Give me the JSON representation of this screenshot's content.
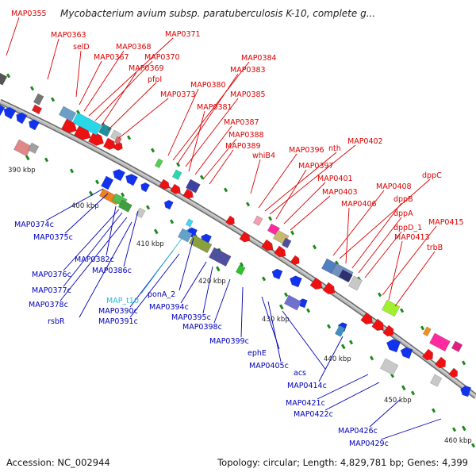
{
  "title": "Mycobacterium avium subsp. paratuberculosis K-10, complete g...",
  "footer": {
    "accession": "Accession: NC_002944",
    "topology": "Topology: circular; Length: 4,829,781 bp; Genes: 4,399"
  },
  "kbp_labels": [
    "390 kbp",
    "400 kbp",
    "410 kbp",
    "420 kbp",
    "430 kbp",
    "440 kbp",
    "450 kbp",
    "460 kbp"
  ],
  "colors": {
    "forward_label": "#dd0000",
    "reverse_label": "#0000bb",
    "rna_label": "#22bbdd",
    "forward_gene": "#ee1111",
    "reverse_gene": "#1133ee",
    "backbone": "#8c8c8c",
    "tick": "#1a8a1a"
  },
  "forward_labels": [
    "MAP0355",
    "MAP0363",
    "selD",
    "MAP0367",
    "MAP0368",
    "MAP0371",
    "MAP0370",
    "MAP0369",
    "pfpI",
    "MAP0373",
    "MAP0380",
    "MAP0384",
    "MAP0383",
    "MAP0385",
    "MAP0381",
    "MAP0387",
    "MAP0388",
    "MAP0389",
    "whiB4",
    "MAP0396",
    "nth",
    "MAP0402",
    "MAP0397",
    "MAP0401",
    "MAP0403",
    "MAP0408",
    "dppC",
    "MAP0406",
    "dppB",
    "dppA",
    "dppD_1",
    "MAP0415",
    "MAP0413",
    "trbB"
  ],
  "reverse_labels": [
    "MAP0374c",
    "MAP0375c",
    "MAP0382c",
    "MAP0386c",
    "MAP0376c",
    "MAP0377c",
    "MAP0378c",
    "rsbR",
    "ponA_2",
    "MAP0390c",
    "MAP0391c",
    "MAP0394c",
    "MAP0395c",
    "MAP0398c",
    "MAP0399c",
    "ephE",
    "MAP0405c",
    "acs",
    "MAP0414c",
    "MAP0421c",
    "MAP0422c",
    "MAP0426c",
    "MAP0429c"
  ],
  "rna_labels": [
    "MAP_t10"
  ]
}
